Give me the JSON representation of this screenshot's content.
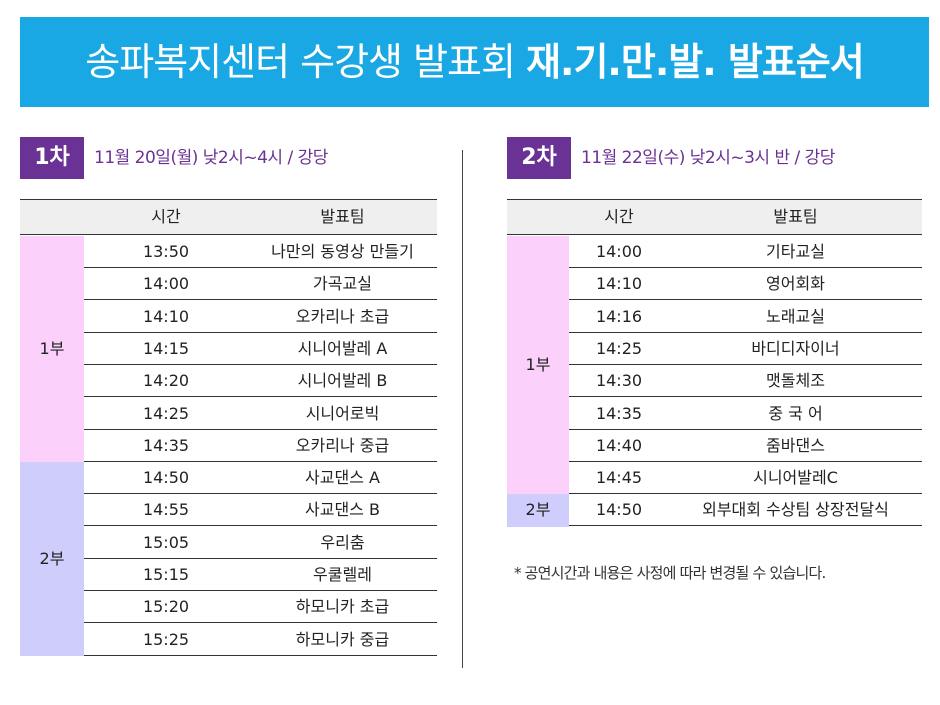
{
  "banner": {
    "title_regular": "송파복지센터 수강생 발표회",
    "title_bold": "재.기.만.발. 발표순서"
  },
  "colors": {
    "banner": "#19a8e4",
    "badge": "#6a3294",
    "part1": "#fbd0fb",
    "part2": "#cfcdfb"
  },
  "round1": {
    "badge": "1차",
    "info": "11월 20일(월) 낮2시~4시 / 강당",
    "headers": {
      "time": "시간",
      "team": "발표팀"
    },
    "groups": [
      {
        "label": "1부",
        "rows": [
          {
            "time": "13:50",
            "team": "나만의 동영상 만들기"
          },
          {
            "time": "14:00",
            "team": "가곡교실"
          },
          {
            "time": "14:10",
            "team": "오카리나 초급"
          },
          {
            "time": "14:15",
            "team": "시니어발레 A"
          },
          {
            "time": "14:20",
            "team": "시니어발레 B"
          },
          {
            "time": "14:25",
            "team": "시니어로빅"
          },
          {
            "time": "14:35",
            "team": "오카리나 중급"
          }
        ]
      },
      {
        "label": "2부",
        "rows": [
          {
            "time": "14:50",
            "team": "사교댄스 A"
          },
          {
            "time": "14:55",
            "team": "사교댄스 B"
          },
          {
            "time": "15:05",
            "team": "우리춤"
          },
          {
            "time": "15:15",
            "team": "우쿨렐레"
          },
          {
            "time": "15:20",
            "team": "하모니카 초급"
          },
          {
            "time": "15:25",
            "team": "하모니카 중급"
          }
        ]
      }
    ]
  },
  "round2": {
    "badge": "2차",
    "info": "11월 22일(수) 낮2시~3시 반 / 강당",
    "headers": {
      "time": "시간",
      "team": "발표팀"
    },
    "groups": [
      {
        "label": "1부",
        "rows": [
          {
            "time": "14:00",
            "team": "기타교실"
          },
          {
            "time": "14:10",
            "team": "영어회화"
          },
          {
            "time": "14:16",
            "team": "노래교실"
          },
          {
            "time": "14:25",
            "team": "바디디자이너"
          },
          {
            "time": "14:30",
            "team": "맷돌체조"
          },
          {
            "time": "14:35",
            "team": "중 국 어"
          },
          {
            "time": "14:40",
            "team": "줌바댄스"
          },
          {
            "time": "14:45",
            "team": "시니어발레C"
          }
        ]
      },
      {
        "label": "2부",
        "rows": [
          {
            "time": "14:50",
            "team": "외부대회 수상팀 상장전달식"
          }
        ]
      }
    ]
  },
  "note": "* 공연시간과  내용은 사정에 따라 변경될 수 있습니다."
}
